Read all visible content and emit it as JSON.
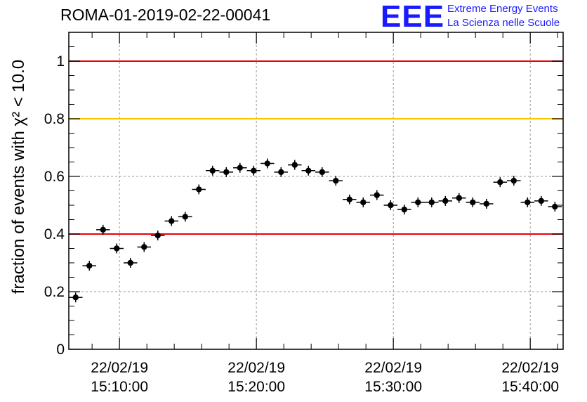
{
  "title": "ROMA-01-2019-02-22-00041",
  "logo": {
    "mark": "EEE",
    "line1": "Extreme Energy Events",
    "line2": "La Scienza nelle Scuole",
    "color": "#1a1aff"
  },
  "chart_data": {
    "type": "scatter",
    "title": "ROMA-01-2019-02-22-00041",
    "ylabel": "fraction of events with χ² < 10.0",
    "xlabel": "",
    "ylim": [
      0,
      1.1
    ],
    "yticks": [
      0,
      0.2,
      0.4,
      0.6,
      0.8,
      1
    ],
    "ytick_labels": [
      "0",
      "0.2",
      "0.4",
      "0.6",
      "0.8",
      "1"
    ],
    "xlim_minutes": [
      6.3,
      42.4
    ],
    "xticks": [
      {
        "minute": 10,
        "date": "22/02/19",
        "time": "15:10:00"
      },
      {
        "minute": 20,
        "date": "22/02/19",
        "time": "15:20:00"
      },
      {
        "minute": 30,
        "date": "22/02/19",
        "time": "15:30:00"
      },
      {
        "minute": 40,
        "date": "22/02/19",
        "time": "15:40:00"
      }
    ],
    "x_bin_width_minutes": 1.0,
    "x_minutes": [
      6.8,
      7.8,
      8.8,
      9.8,
      10.8,
      11.8,
      12.8,
      13.8,
      14.8,
      15.8,
      16.8,
      17.8,
      18.8,
      19.8,
      20.8,
      21.8,
      22.8,
      23.8,
      24.8,
      25.8,
      26.8,
      27.8,
      28.8,
      29.8,
      30.8,
      31.8,
      32.8,
      33.8,
      34.8,
      35.8,
      36.8,
      37.8,
      38.8,
      39.8,
      40.8,
      41.8
    ],
    "y": [
      0.18,
      0.29,
      0.415,
      0.35,
      0.3,
      0.355,
      0.395,
      0.445,
      0.46,
      0.555,
      0.62,
      0.615,
      0.63,
      0.62,
      0.645,
      0.615,
      0.64,
      0.62,
      0.615,
      0.585,
      0.52,
      0.51,
      0.535,
      0.5,
      0.485,
      0.51,
      0.51,
      0.515,
      0.525,
      0.51,
      0.505,
      0.58,
      0.585,
      0.51,
      0.515,
      0.495
    ],
    "reference_lines": [
      {
        "y": 1.0,
        "color": "#e8000b"
      },
      {
        "y": 0.8,
        "color": "#ffc400"
      },
      {
        "y": 0.4,
        "color": "#e8000b"
      }
    ],
    "grid": true,
    "marker_color": "#000000"
  }
}
